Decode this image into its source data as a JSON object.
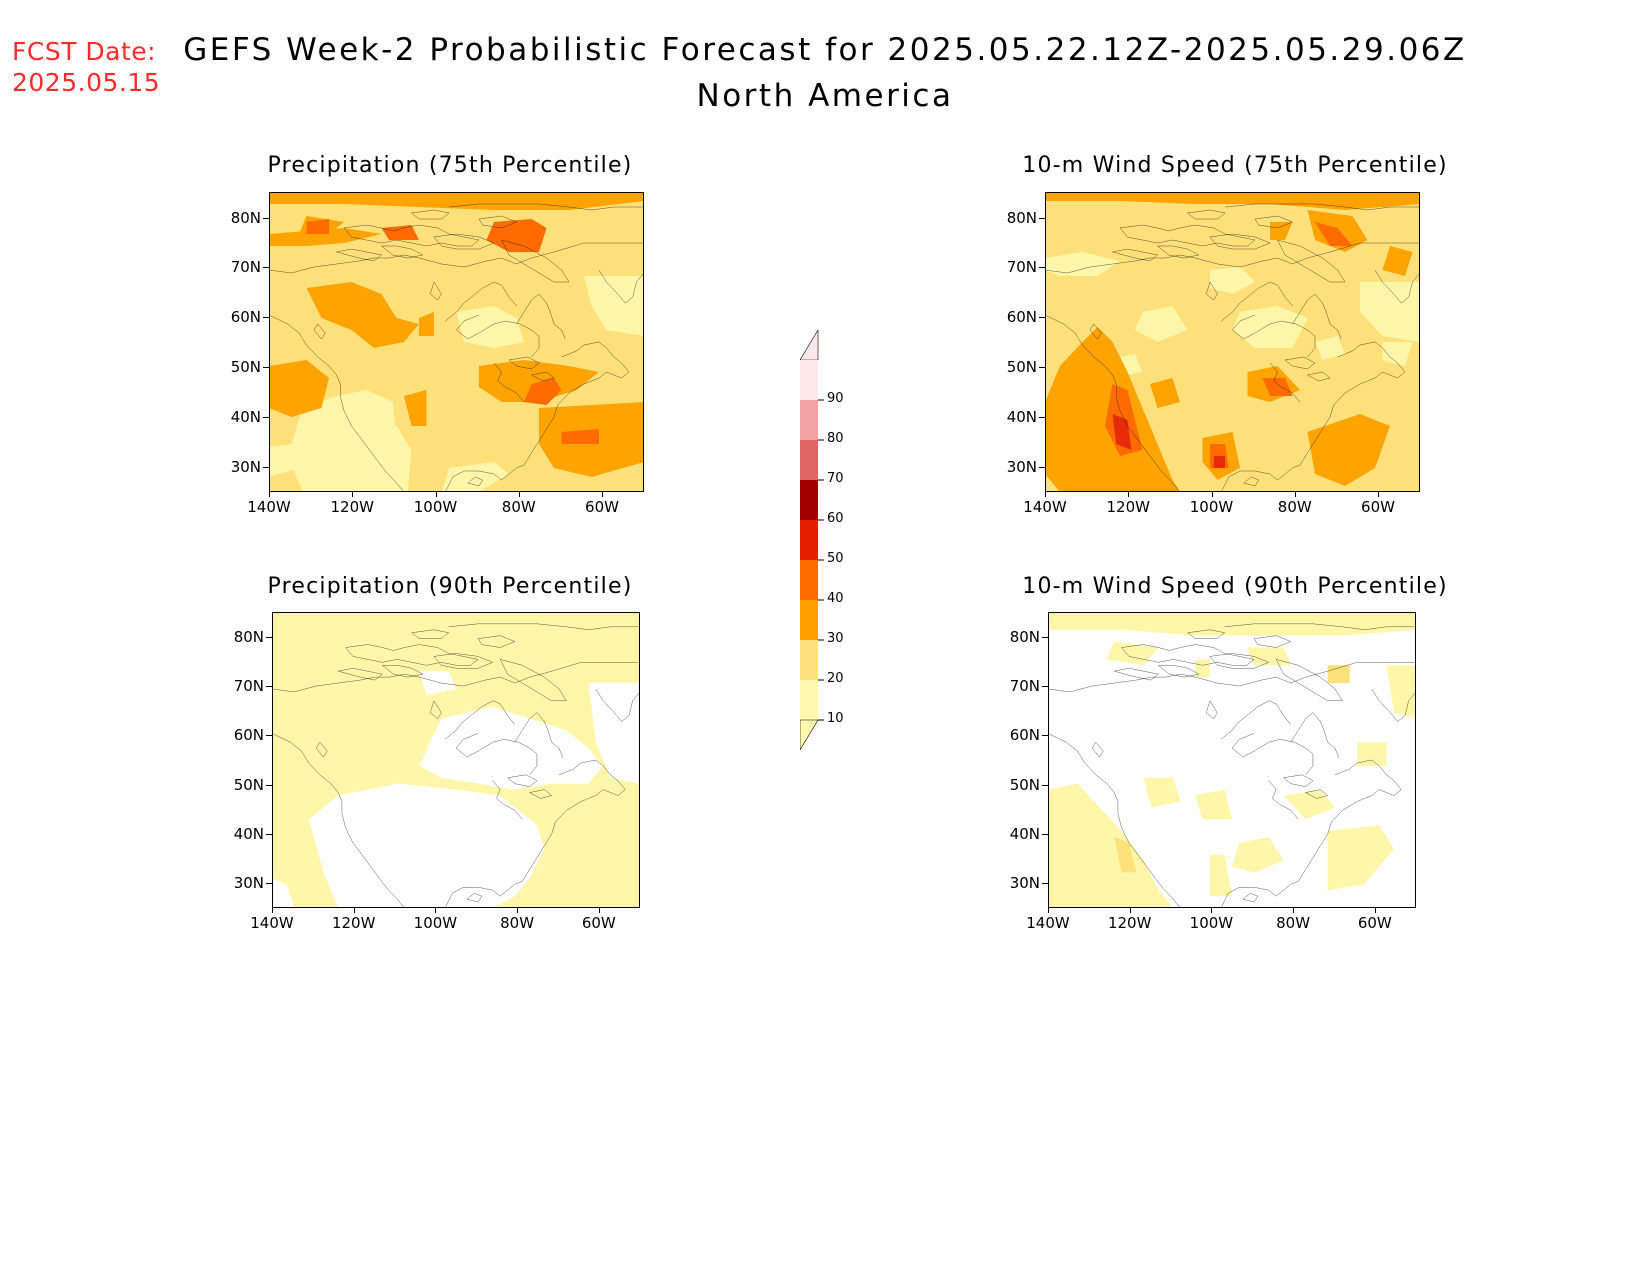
{
  "fcst_date": {
    "label": "FCST Date:",
    "value": "2025.05.15"
  },
  "title": {
    "line1": "GEFS Week-2 Probabilistic Forecast for 2025.05.22.12Z-2025.05.29.06Z",
    "line2": "North America"
  },
  "panels": [
    {
      "title": "Precipitation (75th Percentile)"
    },
    {
      "title": "10-m Wind Speed (75th Percentile)"
    },
    {
      "title": "Precipitation (90th Percentile)"
    },
    {
      "title": "10-m Wind Speed (90th Percentile)"
    }
  ],
  "lat_labels": [
    "80N",
    "70N",
    "60N",
    "50N",
    "40N",
    "30N"
  ],
  "lon_labels": [
    "140W",
    "120W",
    "100W",
    "80W",
    "60W"
  ],
  "colorbar": {
    "labels": [
      "90",
      "80",
      "70",
      "60",
      "50",
      "40",
      "30",
      "20",
      "10"
    ],
    "colors": [
      "#fde8e8",
      "#f2a2a2",
      "#e06464",
      "#a50000",
      "#e61e00",
      "#ff6a00",
      "#ffa000",
      "#ffe07a",
      "#fff9b0"
    ]
  },
  "fill_colors": {
    "c10": "#fff6aa",
    "c20": "#ffe07a",
    "c30": "#ffa300",
    "c40": "#ff6b00",
    "c50": "#e62a0a"
  }
}
